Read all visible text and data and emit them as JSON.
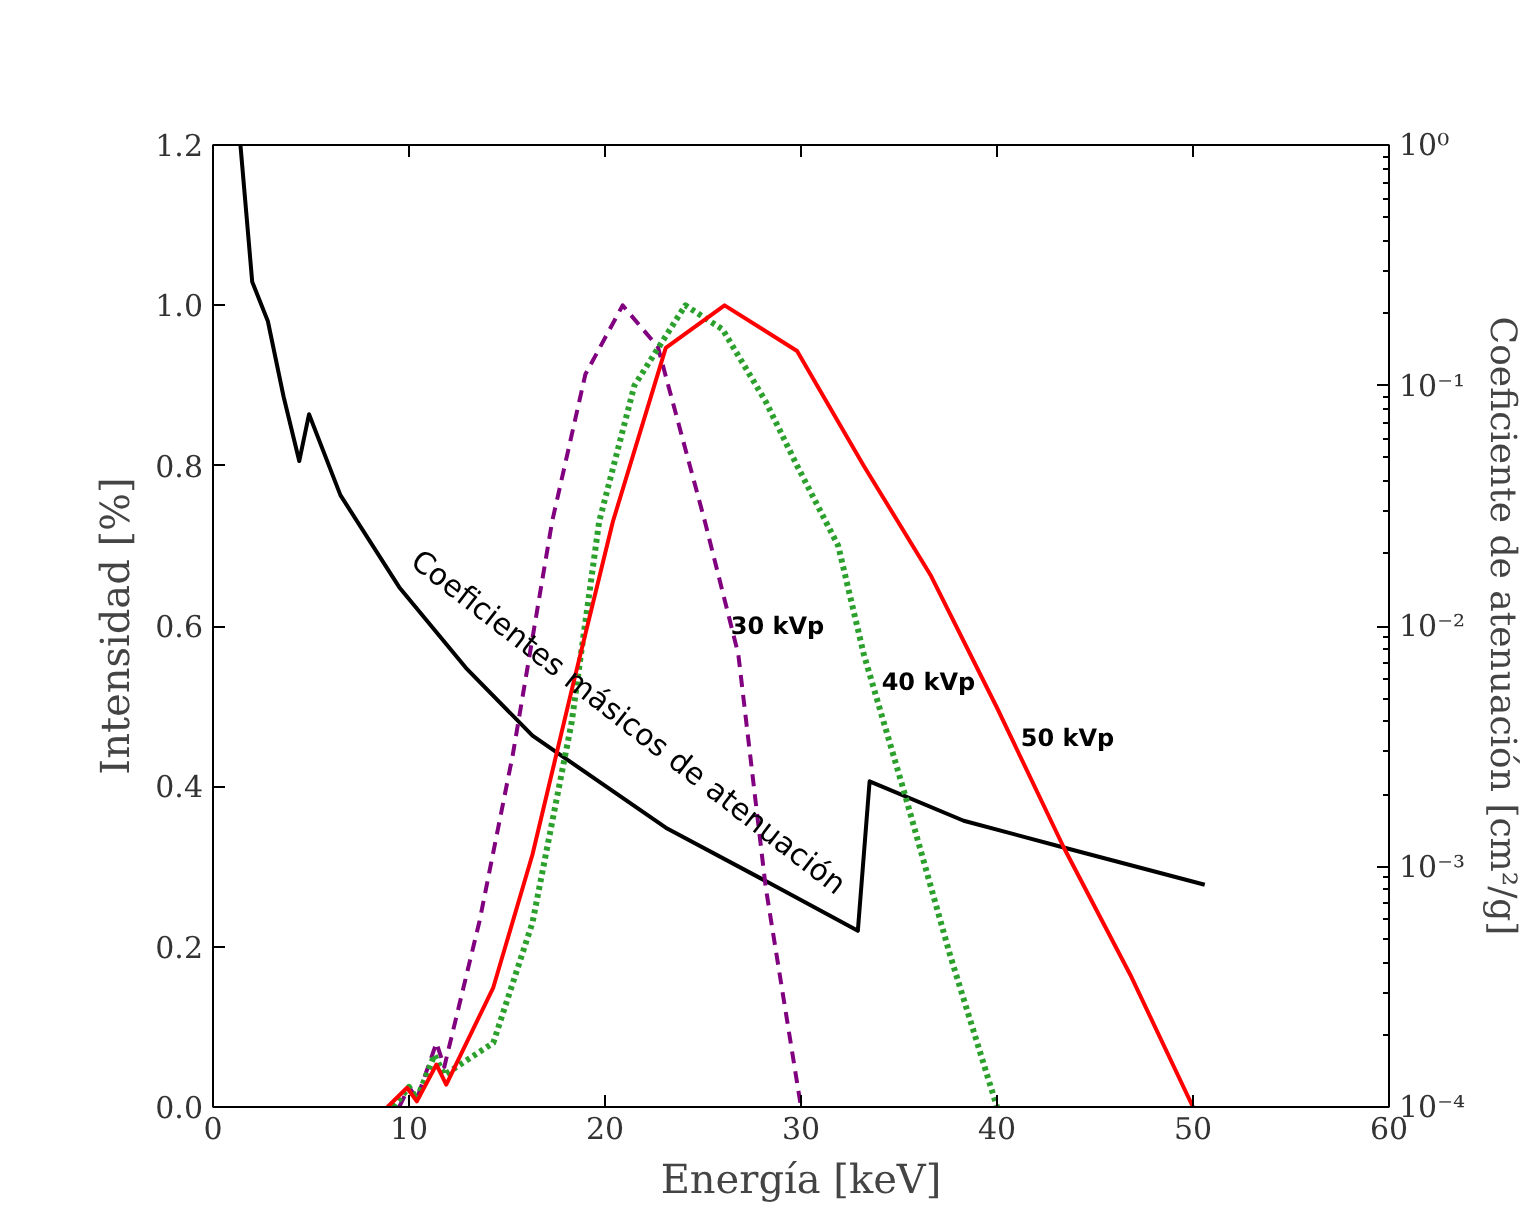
{
  "chart_data": {
    "type": "line",
    "xlabel": "Energía [keV]",
    "ylabel": "Intensidad [%]",
    "y2label": "Coeficiente de atenuación [cm²/g]",
    "xlim": [
      0,
      60
    ],
    "xticks": [
      0,
      10,
      20,
      30,
      40,
      50,
      60
    ],
    "ylim": [
      0,
      1.2
    ],
    "yticks": [
      {
        "value": 0,
        "label": "0.0"
      },
      0.2,
      0.4,
      0.6,
      0.8,
      {
        "value": 1,
        "label": "1.0"
      },
      1.2
    ],
    "y2lim": [
      0.0001,
      1
    ],
    "y2ticks": [
      {
        "value": 0.0001,
        "label": "10⁻⁴"
      },
      {
        "value": 0.001,
        "label": "10⁻³"
      },
      {
        "value": 0.01,
        "label": "10⁻²"
      },
      {
        "value": 0.1,
        "label": "10⁻¹"
      },
      {
        "value": 1,
        "label": "10⁰"
      }
    ],
    "log": "y2",
    "grid": false,
    "series": [
      {
        "name": "Coeficientes másicos de atenuación",
        "color": "#000000",
        "line_style": "solid",
        "axis": "y2",
        "x": [
          1.4,
          2.0,
          2.8,
          3.6,
          4.4,
          4.9,
          6.5,
          9.5,
          12.9,
          16.3,
          23.1,
          28.2,
          32.9,
          33.5,
          38.3,
          43.4,
          50.6
        ],
        "values": [
          1.0,
          0.27,
          0.185,
          0.09,
          0.0485,
          0.076,
          0.035,
          0.0145,
          0.0067,
          0.0035,
          0.00145,
          0.00087,
          0.00054,
          0.00226,
          0.00155,
          0.0012,
          0.00084
        ]
      },
      {
        "name": "30 kVp",
        "color": "#800080",
        "line_style": "dashed",
        "x": [
          9.5,
          10.0,
          10.4,
          11.4,
          11.8,
          13.6,
          15.3,
          17.3,
          19.0,
          20.9,
          22.7,
          25.1,
          26.8,
          28.2,
          30.0
        ],
        "values": [
          0,
          0.025,
          0.01,
          0.08,
          0.05,
          0.232,
          0.44,
          0.73,
          0.914,
          1.0,
          0.948,
          0.73,
          0.565,
          0.274,
          0
        ]
      },
      {
        "name": "40 kVp",
        "color": "#2ca02c",
        "line_style": "dotted",
        "x": [
          9.2,
          10.0,
          10.4,
          11.3,
          11.8,
          14.3,
          16.3,
          18.3,
          19.7,
          21.5,
          24.1,
          26.0,
          28.2,
          29.8,
          31.9,
          33.2,
          35.3,
          37.6,
          40.0
        ],
        "values": [
          0,
          0.025,
          0.01,
          0.065,
          0.04,
          0.08,
          0.23,
          0.48,
          0.73,
          0.9,
          1.0,
          0.97,
          0.88,
          0.8,
          0.7,
          0.565,
          0.39,
          0.19,
          0
        ]
      },
      {
        "name": "50 kVp",
        "color": "#ff0000",
        "line_style": "solid",
        "x": [
          8.9,
          9.9,
          10.4,
          11.4,
          11.9,
          14.3,
          16.3,
          18.3,
          20.4,
          23.1,
          26.1,
          29.8,
          33.2,
          36.6,
          40.0,
          43.4,
          46.8,
          50.0
        ],
        "values": [
          0,
          0.024,
          0.007,
          0.053,
          0.028,
          0.149,
          0.315,
          0.52,
          0.73,
          0.947,
          1.0,
          0.943,
          0.8,
          0.664,
          0.498,
          0.324,
          0.165,
          0
        ]
      }
    ]
  }
}
